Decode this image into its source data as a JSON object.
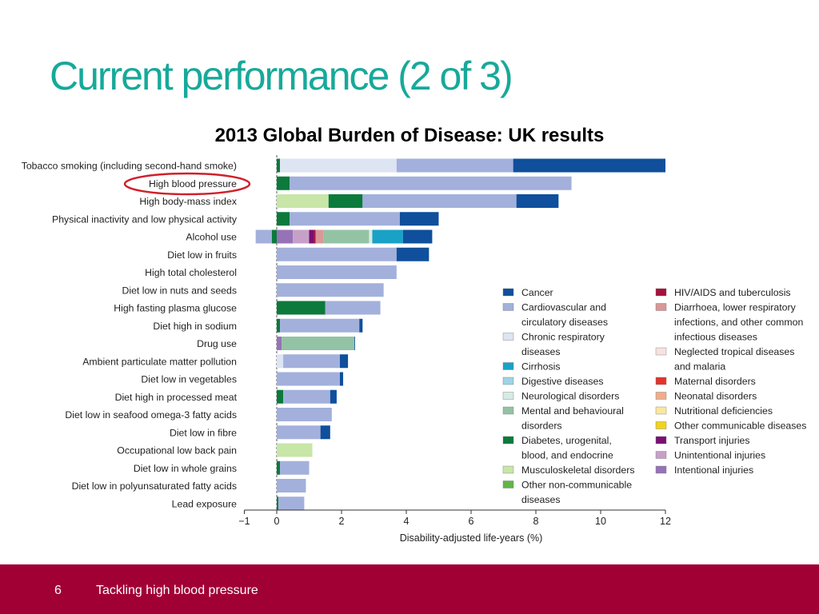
{
  "slide": {
    "title": "Current performance (2 of 3)",
    "page_number": "6",
    "footer_text": "Tackling high blood pressure"
  },
  "colors": {
    "title": "#17a99a",
    "footer_bg": "#a10035",
    "highlight_circle": "#d0202a"
  },
  "chart_data": {
    "type": "bar",
    "orientation": "horizontal",
    "stacked": true,
    "title": "2013 Global Burden of Disease: UK results",
    "xlabel": "Disability-adjusted life-years (%)",
    "xlim": [
      -1,
      12
    ],
    "xticks": [
      -1,
      0,
      2,
      4,
      6,
      8,
      10,
      12
    ],
    "highlighted_category": "High blood pressure",
    "categories": [
      "Tobacco smoking (including second-hand smoke)",
      "High blood pressure",
      "High body-mass index",
      "Physical inactivity and low physical activity",
      "Alcohol use",
      "Diet low in fruits",
      "High total cholesterol",
      "Diet low in nuts and seeds",
      "High fasting plasma glucose",
      "Diet high in sodium",
      "Drug use",
      "Ambient particulate matter pollution",
      "Diet low in vegetables",
      "Diet high in processed meat",
      "Diet low in seafood omega-3 fatty acids",
      "Diet low in fibre",
      "Occupational low back pain",
      "Diet low in whole grains",
      "Diet low in polyunsaturated fatty acids",
      "Lead exposure"
    ],
    "legend": [
      {
        "key": "cancer",
        "label": [
          "Cancer"
        ],
        "color": "#0f4f9c"
      },
      {
        "key": "cardio",
        "label": [
          "Cardiovascular and",
          "circulatory diseases"
        ],
        "color": "#a3b0dc"
      },
      {
        "key": "chronic_resp",
        "label": [
          "Chronic respiratory",
          "diseases"
        ],
        "color": "#dde4f2"
      },
      {
        "key": "cirrhosis",
        "label": [
          "Cirrhosis"
        ],
        "color": "#1aa1c6"
      },
      {
        "key": "digestive",
        "label": [
          "Digestive diseases"
        ],
        "color": "#9fd3e6"
      },
      {
        "key": "neuro",
        "label": [
          "Neurological disorders"
        ],
        "color": "#d6ebe3"
      },
      {
        "key": "mental",
        "label": [
          "Mental and behavioural",
          "disorders"
        ],
        "color": "#93c3a4"
      },
      {
        "key": "diabetes",
        "label": [
          "Diabetes, urogenital,",
          "blood, and endocrine"
        ],
        "color": "#0b7a3b"
      },
      {
        "key": "musculo",
        "label": [
          "Musculoskeletal disorders"
        ],
        "color": "#c8e6a8"
      },
      {
        "key": "other_ncd",
        "label": [
          "Other non-communicable",
          "diseases"
        ],
        "color": "#62b548"
      },
      {
        "key": "hiv_tb",
        "label": [
          "HIV/AIDS and tuberculosis"
        ],
        "color": "#a5123c"
      },
      {
        "key": "diarrhoea",
        "label": [
          "Diarrhoea, lower respiratory",
          "infections, and other common",
          "infectious diseases"
        ],
        "color": "#d99797"
      },
      {
        "key": "ntd",
        "label": [
          "Neglected tropical diseases",
          "and malaria"
        ],
        "color": "#f7e2e2"
      },
      {
        "key": "maternal",
        "label": [
          "Maternal disorders"
        ],
        "color": "#e3342c"
      },
      {
        "key": "neonatal",
        "label": [
          "Neonatal disorders"
        ],
        "color": "#f0ad8c"
      },
      {
        "key": "nutritional",
        "label": [
          "Nutritional deficiencies"
        ],
        "color": "#fbe89d"
      },
      {
        "key": "other_comm",
        "label": [
          "Other communicable diseases"
        ],
        "color": "#f1d41a"
      },
      {
        "key": "transport",
        "label": [
          "Transport injuries"
        ],
        "color": "#7a1073"
      },
      {
        "key": "unintentional",
        "label": [
          "Unintentional injuries"
        ],
        "color": "#c7a0c8"
      },
      {
        "key": "intentional",
        "label": [
          "Intentional injuries"
        ],
        "color": "#9673b6"
      }
    ],
    "bars": [
      {
        "start": 0,
        "segments": [
          [
            "diabetes",
            0.1
          ],
          [
            "chronic_resp",
            3.6
          ],
          [
            "cardio",
            3.6
          ],
          [
            "cancer",
            4.7
          ]
        ]
      },
      {
        "start": 0,
        "segments": [
          [
            "diabetes",
            0.4
          ],
          [
            "cardio",
            8.7
          ]
        ]
      },
      {
        "start": 0,
        "segments": [
          [
            "musculo",
            1.6
          ],
          [
            "diabetes",
            1.05
          ],
          [
            "cardio",
            4.75
          ],
          [
            "cancer",
            1.3
          ]
        ]
      },
      {
        "start": 0,
        "segments": [
          [
            "diabetes",
            0.4
          ],
          [
            "cardio",
            3.4
          ],
          [
            "cancer",
            1.2
          ]
        ]
      },
      {
        "start": -0.65,
        "segments": [
          [
            "cardio",
            0.5
          ],
          [
            "diabetes",
            0.15
          ],
          [
            "intentional",
            0.5
          ],
          [
            "unintentional",
            0.5
          ],
          [
            "transport",
            0.15
          ],
          [
            "hiv_tb",
            0.05
          ],
          [
            "diarrhoea",
            0.25
          ],
          [
            "mental",
            1.4
          ],
          [
            "neuro",
            0.1
          ],
          [
            "cirrhosis",
            0.95
          ],
          [
            "cancer",
            0.9
          ]
        ]
      },
      {
        "start": 0,
        "segments": [
          [
            "cardio",
            3.7
          ],
          [
            "cancer",
            1.0
          ]
        ]
      },
      {
        "start": 0,
        "segments": [
          [
            "cardio",
            3.7
          ]
        ]
      },
      {
        "start": 0,
        "segments": [
          [
            "cardio",
            3.3
          ]
        ]
      },
      {
        "start": 0,
        "segments": [
          [
            "diabetes",
            1.5
          ],
          [
            "cardio",
            1.7
          ]
        ]
      },
      {
        "start": 0,
        "segments": [
          [
            "diabetes",
            0.1
          ],
          [
            "cardio",
            2.45
          ],
          [
            "cancer",
            0.1
          ]
        ]
      },
      {
        "start": 0,
        "segments": [
          [
            "intentional",
            0.15
          ],
          [
            "mental",
            2.25
          ],
          [
            "cancer",
            0.02
          ]
        ]
      },
      {
        "start": 0,
        "segments": [
          [
            "chronic_resp",
            0.2
          ],
          [
            "cardio",
            1.75
          ],
          [
            "cancer",
            0.25
          ]
        ]
      },
      {
        "start": 0,
        "segments": [
          [
            "cardio",
            1.95
          ],
          [
            "cancer",
            0.1
          ]
        ]
      },
      {
        "start": 0,
        "segments": [
          [
            "diabetes",
            0.2
          ],
          [
            "cardio",
            1.45
          ],
          [
            "cancer",
            0.2
          ]
        ]
      },
      {
        "start": 0,
        "segments": [
          [
            "cardio",
            1.7
          ]
        ]
      },
      {
        "start": 0,
        "segments": [
          [
            "cardio",
            1.35
          ],
          [
            "cancer",
            0.3
          ]
        ]
      },
      {
        "start": 0,
        "segments": [
          [
            "musculo",
            1.1
          ]
        ]
      },
      {
        "start": 0,
        "segments": [
          [
            "diabetes",
            0.1
          ],
          [
            "cardio",
            0.9
          ]
        ]
      },
      {
        "start": 0,
        "segments": [
          [
            "cardio",
            0.9
          ]
        ]
      },
      {
        "start": 0,
        "segments": [
          [
            "diabetes",
            0.05
          ],
          [
            "cardio",
            0.8
          ]
        ]
      }
    ]
  }
}
